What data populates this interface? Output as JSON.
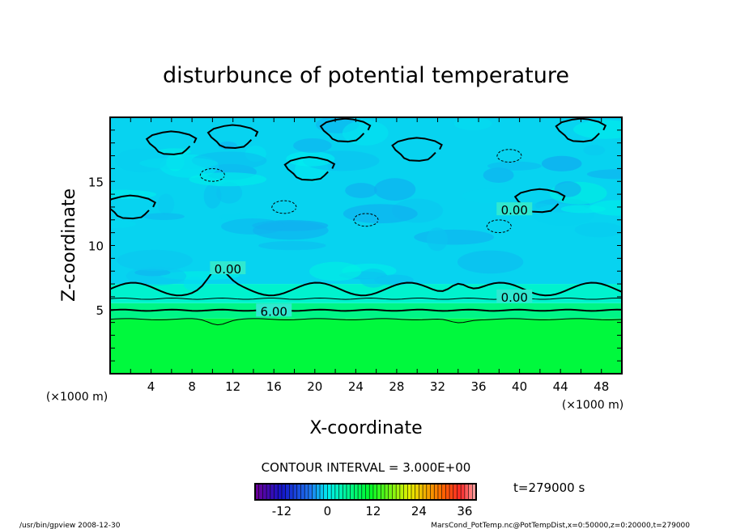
{
  "chart_data": {
    "type": "heatmap",
    "title": "disturbunce of potential temperature",
    "xlabel": "X-coordinate",
    "ylabel": "Z-coordinate",
    "x_unit": "(×1000 m)",
    "xlim": [
      0,
      50
    ],
    "ylim": [
      0,
      20
    ],
    "x_ticks": [
      4,
      8,
      12,
      16,
      20,
      24,
      28,
      32,
      36,
      40,
      44,
      48
    ],
    "y_ticks": [
      5,
      10,
      15
    ],
    "contour_interval_text": "CONTOUR INTERVAL = 3.000E+00",
    "contour_labels": [
      {
        "text": "0.00",
        "x": 11.5,
        "z": 8.2
      },
      {
        "text": "6.00",
        "x": 16,
        "z": 4.9
      },
      {
        "text": "0.00",
        "x": 39.5,
        "z": 6.0
      },
      {
        "text": "0.00",
        "x": 39.5,
        "z": 12.8
      }
    ],
    "colorbar": {
      "min": -19,
      "max": 39,
      "step": 1,
      "tick_labels": [
        "-12",
        "0",
        "12",
        "24",
        "36"
      ],
      "tick_values": [
        -12,
        0,
        12,
        24,
        36
      ]
    },
    "field_summary": [
      {
        "z_range": [
          0,
          4.3
        ],
        "value": 10
      },
      {
        "z_range": [
          4.3,
          5.5
        ],
        "value": 6
      },
      {
        "z_range": [
          5.5,
          7
        ],
        "value": 2
      },
      {
        "z_range": [
          7,
          20
        ],
        "value": -1
      }
    ],
    "time_text": "t=279000 s"
  },
  "footer": {
    "program": "/usr/bin/gpview   2008-12-30",
    "source": "MarsCond_PotTemp.nc@PotTempDist,x=0:50000,z=0:20000,t=279000"
  }
}
